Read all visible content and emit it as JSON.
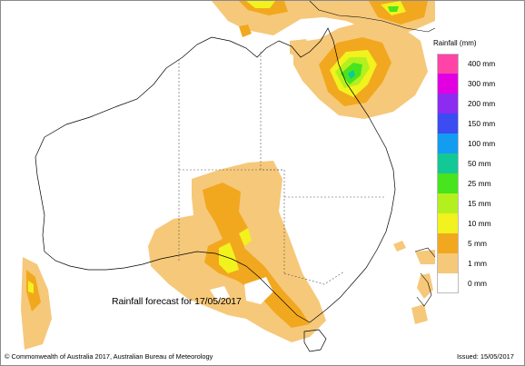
{
  "map": {
    "forecast_caption": "Rainfall forecast for 17/05/2017",
    "copyright": "© Commonwealth of Australia 2017, Australian Bureau of Meteorology",
    "issued": "Issued: 15/05/2017"
  },
  "legend": {
    "title": "Rainfall (mm)",
    "items": [
      {
        "label": "400 mm",
        "color": "#ff44a8"
      },
      {
        "label": "300 mm",
        "color": "#e200e2"
      },
      {
        "label": "200 mm",
        "color": "#8c2cf0"
      },
      {
        "label": "150 mm",
        "color": "#3a4cf2"
      },
      {
        "label": "100 mm",
        "color": "#149cf0"
      },
      {
        "label": "50 mm",
        "color": "#12c896"
      },
      {
        "label": "25 mm",
        "color": "#48e41e"
      },
      {
        "label": "15 mm",
        "color": "#b4f01e"
      },
      {
        "label": "10 mm",
        "color": "#f2f21e"
      },
      {
        "label": "5 mm",
        "color": "#f2a81e"
      },
      {
        "label": "1 mm",
        "color": "#f6c87a"
      },
      {
        "label": "0 mm",
        "color": "#ffffff"
      }
    ]
  }
}
